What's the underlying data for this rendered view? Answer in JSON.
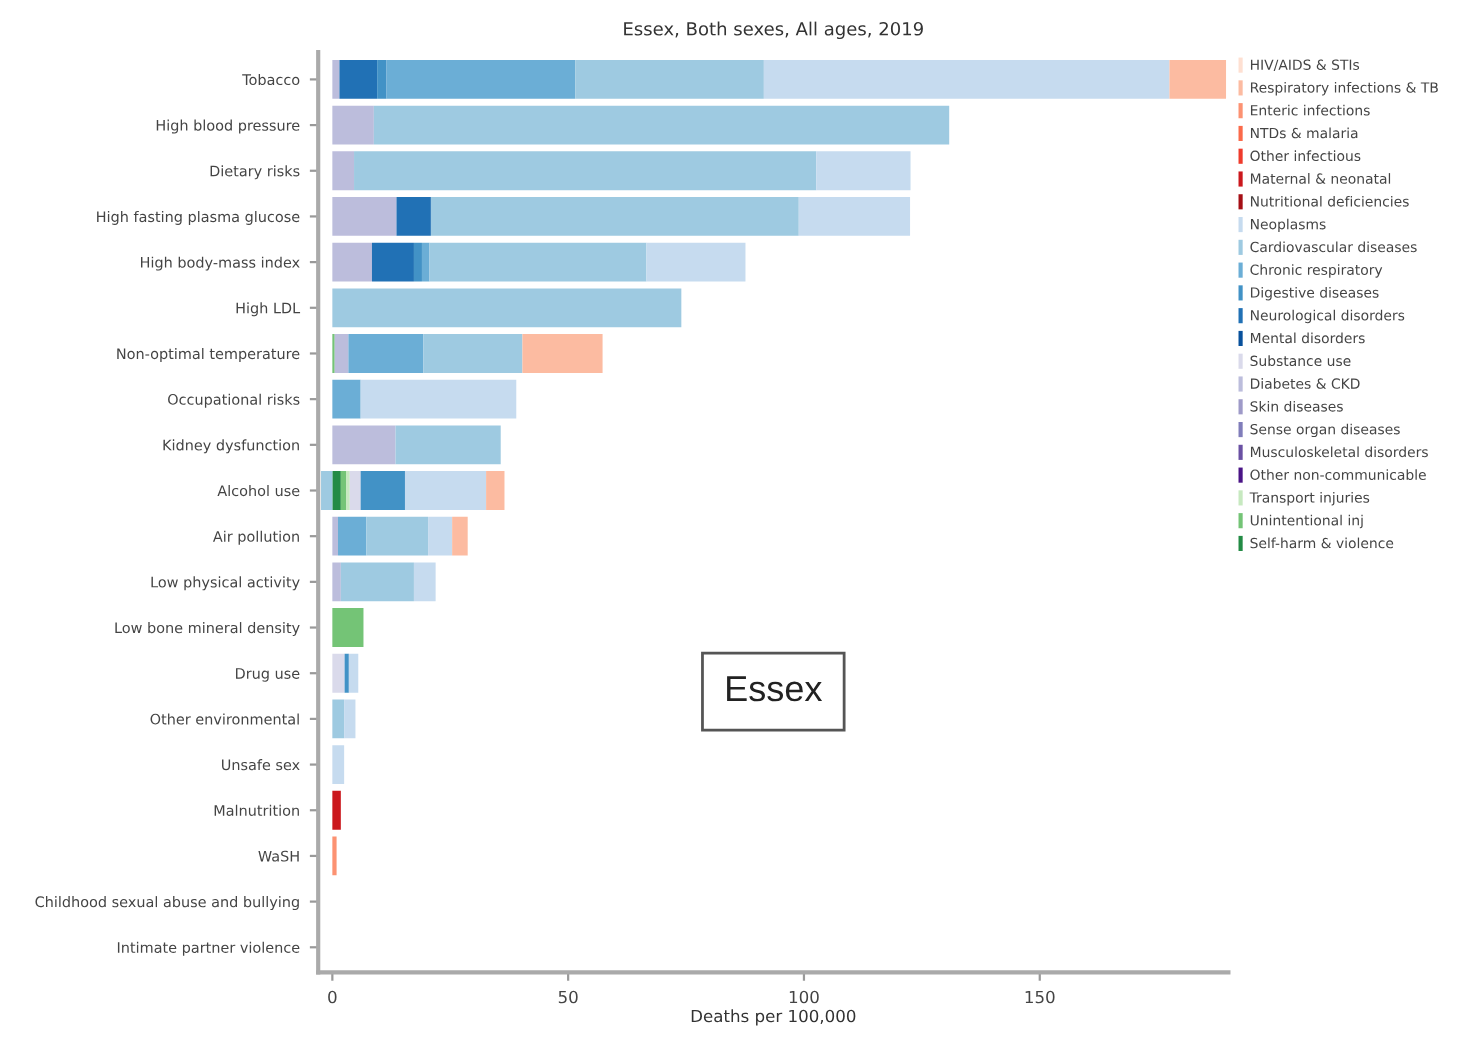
{
  "chart_data": {
    "type": "bar",
    "orientation": "horizontal",
    "stacked": true,
    "title": "Essex, Both sexes, All ages, 2019",
    "xlabel": "Deaths per 100,000",
    "annotations": [
      "Essex"
    ],
    "categories": [
      "Tobacco",
      "High blood pressure",
      "Dietary risks",
      "High fasting plasma glucose",
      "High body-mass index",
      "High LDL",
      "Non-optimal temperature",
      "Occupational risks",
      "Kidney dysfunction",
      "Alcohol use",
      "Air pollution",
      "Low physical activity",
      "Low bone mineral density",
      "Drug use",
      "Other environmental",
      "Unsafe sex",
      "Malnutrition",
      "WaSH",
      "Childhood sexual abuse and bullying",
      "Intimate partner violence"
    ],
    "xlim": [
      -3,
      190
    ],
    "xticks": [
      0,
      50,
      100,
      150
    ],
    "grid": false,
    "legend": "right",
    "series": [
      {
        "name": "Self-harm & violence",
        "color": "#238b45",
        "values": [
          null,
          null,
          null,
          null,
          null,
          null,
          null,
          null,
          null,
          1.8,
          null,
          null,
          null,
          null,
          null,
          null,
          null,
          null,
          null,
          null
        ]
      },
      {
        "name": "Unintentional inj",
        "color": "#74c476",
        "values": [
          null,
          null,
          null,
          null,
          null,
          null,
          0.5,
          null,
          null,
          1.1,
          null,
          null,
          6.6,
          null,
          null,
          null,
          null,
          null,
          null,
          null
        ]
      },
      {
        "name": "Transport injuries",
        "color": "#c7e9c0",
        "values": [
          null,
          null,
          null,
          null,
          null,
          null,
          null,
          null,
          null,
          0.8,
          null,
          null,
          null,
          null,
          null,
          null,
          null,
          null,
          null,
          null
        ]
      },
      {
        "name": "Other non-communicable",
        "color": "#4a1486",
        "values": [
          null,
          null,
          null,
          null,
          null,
          null,
          null,
          null,
          null,
          null,
          null,
          null,
          null,
          null,
          null,
          null,
          null,
          null,
          null,
          null
        ]
      },
      {
        "name": "Musculoskeletal disorders",
        "color": "#6a51a3",
        "values": [
          null,
          null,
          null,
          null,
          null,
          null,
          null,
          null,
          null,
          null,
          null,
          null,
          null,
          null,
          null,
          null,
          null,
          null,
          null,
          null
        ]
      },
      {
        "name": "Sense organ diseases",
        "color": "#807dba",
        "values": [
          null,
          null,
          null,
          null,
          null,
          null,
          null,
          null,
          null,
          null,
          null,
          null,
          null,
          null,
          null,
          null,
          null,
          null,
          null,
          null
        ]
      },
      {
        "name": "Skin diseases",
        "color": "#9e9ac8",
        "values": [
          null,
          null,
          null,
          null,
          null,
          null,
          null,
          null,
          null,
          null,
          null,
          null,
          null,
          null,
          null,
          null,
          null,
          null,
          null,
          null
        ]
      },
      {
        "name": "Diabetes & CKD",
        "color": "#bcbddc",
        "values": [
          1.5,
          8.8,
          4.6,
          13.6,
          8.4,
          null,
          2.9,
          null,
          13.4,
          null,
          1.2,
          1.8,
          null,
          null,
          null,
          null,
          null,
          null,
          null,
          null
        ]
      },
      {
        "name": "Substance use",
        "color": "#dadaeb",
        "values": [
          null,
          null,
          null,
          null,
          null,
          null,
          null,
          null,
          null,
          2.3,
          null,
          null,
          null,
          2.6,
          null,
          null,
          null,
          null,
          null,
          null
        ]
      },
      {
        "name": "Mental disorders",
        "color": "#08519c",
        "values": [
          null,
          null,
          null,
          null,
          null,
          null,
          null,
          null,
          null,
          null,
          null,
          null,
          null,
          null,
          null,
          null,
          null,
          null,
          null,
          null
        ]
      },
      {
        "name": "Neurological disorders",
        "color": "#2171b5",
        "values": [
          8,
          null,
          null,
          7.3,
          8.9,
          null,
          null,
          null,
          null,
          null,
          null,
          null,
          null,
          null,
          null,
          null,
          null,
          null,
          null,
          null
        ]
      },
      {
        "name": "Digestive diseases",
        "color": "#4292c6",
        "values": [
          2,
          null,
          null,
          null,
          1.7,
          null,
          null,
          null,
          null,
          9.4,
          null,
          null,
          null,
          0.9,
          null,
          null,
          null,
          null,
          null,
          null
        ]
      },
      {
        "name": "Chronic respiratory",
        "color": "#6baed6",
        "values": [
          40,
          null,
          null,
          null,
          1.6,
          null,
          15.9,
          6,
          null,
          null,
          6,
          null,
          null,
          null,
          null,
          null,
          null,
          null,
          null,
          null
        ]
      },
      {
        "name": "Cardiovascular diseases",
        "color": "#9ecae1",
        "values": [
          40,
          122,
          98,
          78,
          46,
          74,
          21,
          null,
          22.3,
          -2.4,
          13.1,
          15.5,
          null,
          null,
          2.5,
          null,
          null,
          null,
          null,
          null
        ]
      },
      {
        "name": "Neoplasms",
        "color": "#c6dbef",
        "values": [
          86,
          null,
          20,
          23.6,
          21,
          null,
          null,
          33,
          null,
          17.2,
          5.1,
          4.6,
          null,
          2,
          2.4,
          2.5,
          null,
          null,
          null,
          null
        ]
      },
      {
        "name": "Nutritional deficiencies",
        "color": "#a50f15",
        "values": [
          null,
          null,
          null,
          null,
          null,
          null,
          null,
          null,
          null,
          null,
          null,
          null,
          null,
          null,
          null,
          null,
          null,
          null,
          null,
          null
        ]
      },
      {
        "name": "Maternal & neonatal",
        "color": "#cb181d",
        "values": [
          null,
          null,
          null,
          null,
          null,
          null,
          null,
          null,
          null,
          null,
          null,
          null,
          null,
          null,
          null,
          null,
          1.8,
          null,
          null,
          null
        ]
      },
      {
        "name": "Other infectious",
        "color": "#ef3b2c",
        "values": [
          null,
          null,
          null,
          null,
          null,
          null,
          null,
          null,
          null,
          null,
          null,
          null,
          null,
          null,
          null,
          null,
          null,
          null,
          null,
          null
        ]
      },
      {
        "name": "NTDs & malaria",
        "color": "#fb6a4a",
        "values": [
          null,
          null,
          null,
          null,
          null,
          null,
          null,
          null,
          null,
          null,
          null,
          null,
          null,
          null,
          null,
          null,
          null,
          null,
          null,
          null
        ]
      },
      {
        "name": "Enteric infections",
        "color": "#fc9272",
        "values": [
          null,
          null,
          null,
          null,
          null,
          null,
          null,
          null,
          null,
          null,
          null,
          null,
          null,
          null,
          null,
          null,
          null,
          0.9,
          null,
          null
        ]
      },
      {
        "name": "Respiratory infections & TB",
        "color": "#fcbba1",
        "values": [
          12,
          null,
          null,
          null,
          null,
          null,
          17,
          null,
          null,
          3.9,
          3.3,
          null,
          null,
          null,
          null,
          null,
          null,
          null,
          null,
          null
        ]
      },
      {
        "name": "HIV/AIDS & STIs",
        "color": "#fee0d2",
        "values": [
          null,
          null,
          null,
          null,
          null,
          null,
          null,
          null,
          null,
          null,
          null,
          null,
          null,
          null,
          null,
          null,
          null,
          null,
          null,
          null
        ]
      }
    ]
  }
}
